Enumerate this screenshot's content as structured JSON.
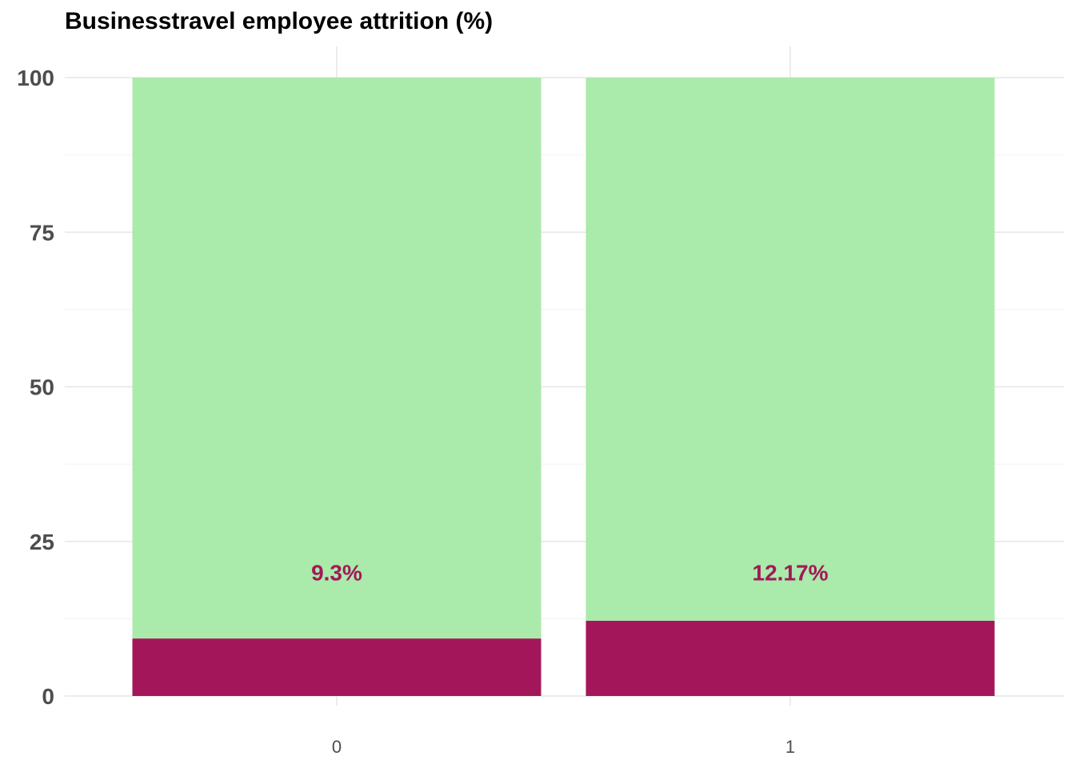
{
  "chart_data": {
    "type": "bar",
    "stacked": true,
    "title": "Businesstravel employee attrition (%)",
    "xlabel": "",
    "ylabel": "",
    "categories": [
      "0",
      "1"
    ],
    "ylim": [
      0,
      100
    ],
    "yticks": [
      "0",
      "25",
      "50",
      "75",
      "100"
    ],
    "series": [
      {
        "values": [
          9.3,
          12.17
        ],
        "color": "#a3175a"
      },
      {
        "values": [
          90.7,
          87.83
        ],
        "color": "#aaeaaa"
      }
    ],
    "data_labels": [
      "9.3%",
      "12.17%"
    ],
    "label_y": 20,
    "label_color": "#a3175a",
    "grid": true,
    "legend": "none"
  }
}
